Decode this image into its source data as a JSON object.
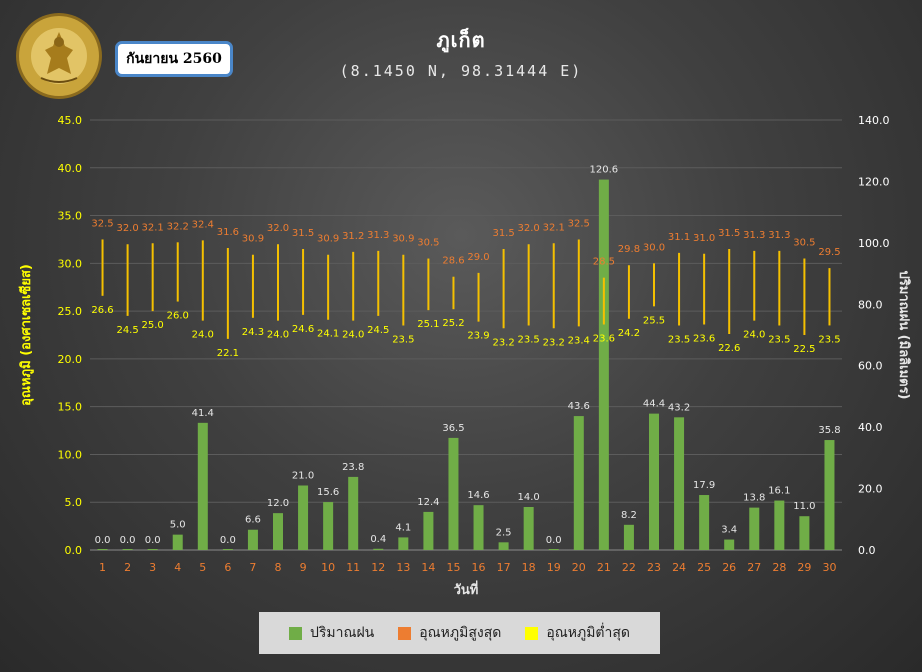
{
  "header": {
    "title": "ภูเก็ต",
    "subtitle": "(8.1450 N, 98.31444 E)",
    "month": "กันยายน 2560"
  },
  "logo": {
    "top_text": "กรมอุตุนิยมวิทยา",
    "bottom_text": "METEOROLOGICAL DEPARTMENT"
  },
  "legend": {
    "rain": "ปริมาณฝน",
    "tmax": "อุณหภูมิสูงสุด",
    "tmin": "อุณหภูมิต่ำสุด"
  },
  "colors": {
    "rain": "#70ad47",
    "tmax": "#ed7d31",
    "tmin": "#ffff00",
    "range_line": "#f5c000",
    "left_axis": "#ffff00",
    "right_axis": "#ffffff",
    "x_ticks": "#ed7d31"
  },
  "chart_data": {
    "type": "bar",
    "title": "ภูเก็ต",
    "subtitle": "(8.1450 N, 98.31444 E)",
    "xlabel": "วันที่",
    "ylabel_left": "อุณหภูมิ (องศาเซลเซียส)",
    "ylabel_right": "ปริมาณฝน (มิลลิเมตร)",
    "ylim_left": [
      0,
      45
    ],
    "ylim_right": [
      0,
      140
    ],
    "yticks_left": [
      "0.0",
      "5.0",
      "10.0",
      "15.0",
      "20.0",
      "25.0",
      "30.0",
      "35.0",
      "40.0",
      "45.0"
    ],
    "yticks_right": [
      "0.0",
      "20.0",
      "40.0",
      "60.0",
      "80.0",
      "100.0",
      "120.0",
      "140.0"
    ],
    "grid": true,
    "legend_position": "bottom",
    "categories": [
      "1",
      "2",
      "3",
      "4",
      "5",
      "6",
      "7",
      "8",
      "9",
      "10",
      "11",
      "12",
      "13",
      "14",
      "15",
      "16",
      "17",
      "18",
      "19",
      "20",
      "21",
      "22",
      "23",
      "24",
      "25",
      "26",
      "27",
      "28",
      "29",
      "30"
    ],
    "series": [
      {
        "name": "ปริมาณฝน",
        "type": "bar",
        "axis": "right",
        "values": [
          0.0,
          0.0,
          0.0,
          5.0,
          41.4,
          0.0,
          6.6,
          12.0,
          21.0,
          15.6,
          23.8,
          0.4,
          4.1,
          12.4,
          36.5,
          14.6,
          2.5,
          14.0,
          0.0,
          43.6,
          120.6,
          8.2,
          44.4,
          43.2,
          17.9,
          3.4,
          13.8,
          16.1,
          11.0,
          35.8
        ],
        "labels": [
          "0.0",
          "0.0",
          "0.0",
          "5.0",
          "41.4",
          "0.0",
          "6.6",
          "12.0",
          "21.0",
          "15.6",
          "23.8",
          "0.4",
          "4.1",
          "12.4",
          "36.5",
          "14.6",
          "2.5",
          "14.0",
          "0.0",
          "43.6",
          "120.6",
          "8.2",
          "44.4",
          "43.2",
          "17.9",
          "3.4",
          "13.8",
          "16.1",
          "11.0",
          "35.8"
        ]
      },
      {
        "name": "อุณหภูมิสูงสุด",
        "type": "range-high",
        "axis": "left",
        "values": [
          32.5,
          32.0,
          32.1,
          32.2,
          32.4,
          31.6,
          30.9,
          32.0,
          31.5,
          30.9,
          31.2,
          31.3,
          30.9,
          30.5,
          28.6,
          29.0,
          31.5,
          32.0,
          32.1,
          32.5,
          28.5,
          29.8,
          30.0,
          31.1,
          31.0,
          31.5,
          31.3,
          31.3,
          30.5,
          29.5
        ],
        "labels": [
          "32.5",
          "32.0",
          "32.1",
          "32.2",
          "32.4",
          "31.6",
          "30.9",
          "32.0",
          "31.5",
          "30.9",
          "31.2",
          "31.3",
          "30.9",
          "30.5",
          "28.6",
          "29.0",
          "31.5",
          "32.0",
          "32.1",
          "32.5",
          "28.5",
          "29.8",
          "30.0",
          "31.1",
          "31.0",
          "31.5",
          "31.3",
          "31.3",
          "30.5",
          "29.5"
        ]
      },
      {
        "name": "อุณหภูมิต่ำสุด",
        "type": "range-low",
        "axis": "left",
        "values": [
          26.6,
          24.5,
          25.0,
          26.0,
          24.0,
          22.1,
          24.3,
          24.0,
          24.6,
          24.1,
          24.0,
          24.5,
          23.5,
          25.1,
          25.2,
          23.9,
          23.2,
          23.5,
          23.2,
          23.4,
          23.6,
          24.2,
          25.5,
          23.5,
          23.6,
          22.6,
          24.0,
          23.5,
          22.5,
          23.5
        ],
        "labels": [
          "26.6",
          "24.5",
          "25.0",
          "26.0",
          "24.0",
          "22.1",
          "24.3",
          "24.0",
          "24.6",
          "24.1",
          "24.0",
          "24.5",
          "23.5",
          "25.1",
          "25.2",
          "23.9",
          "23.2",
          "23.5",
          "23.2",
          "23.4",
          "23.6",
          "24.2",
          "25.5",
          "23.5",
          "23.6",
          "22.6",
          "24.0",
          "23.5",
          "22.5",
          "23.5"
        ]
      }
    ]
  }
}
